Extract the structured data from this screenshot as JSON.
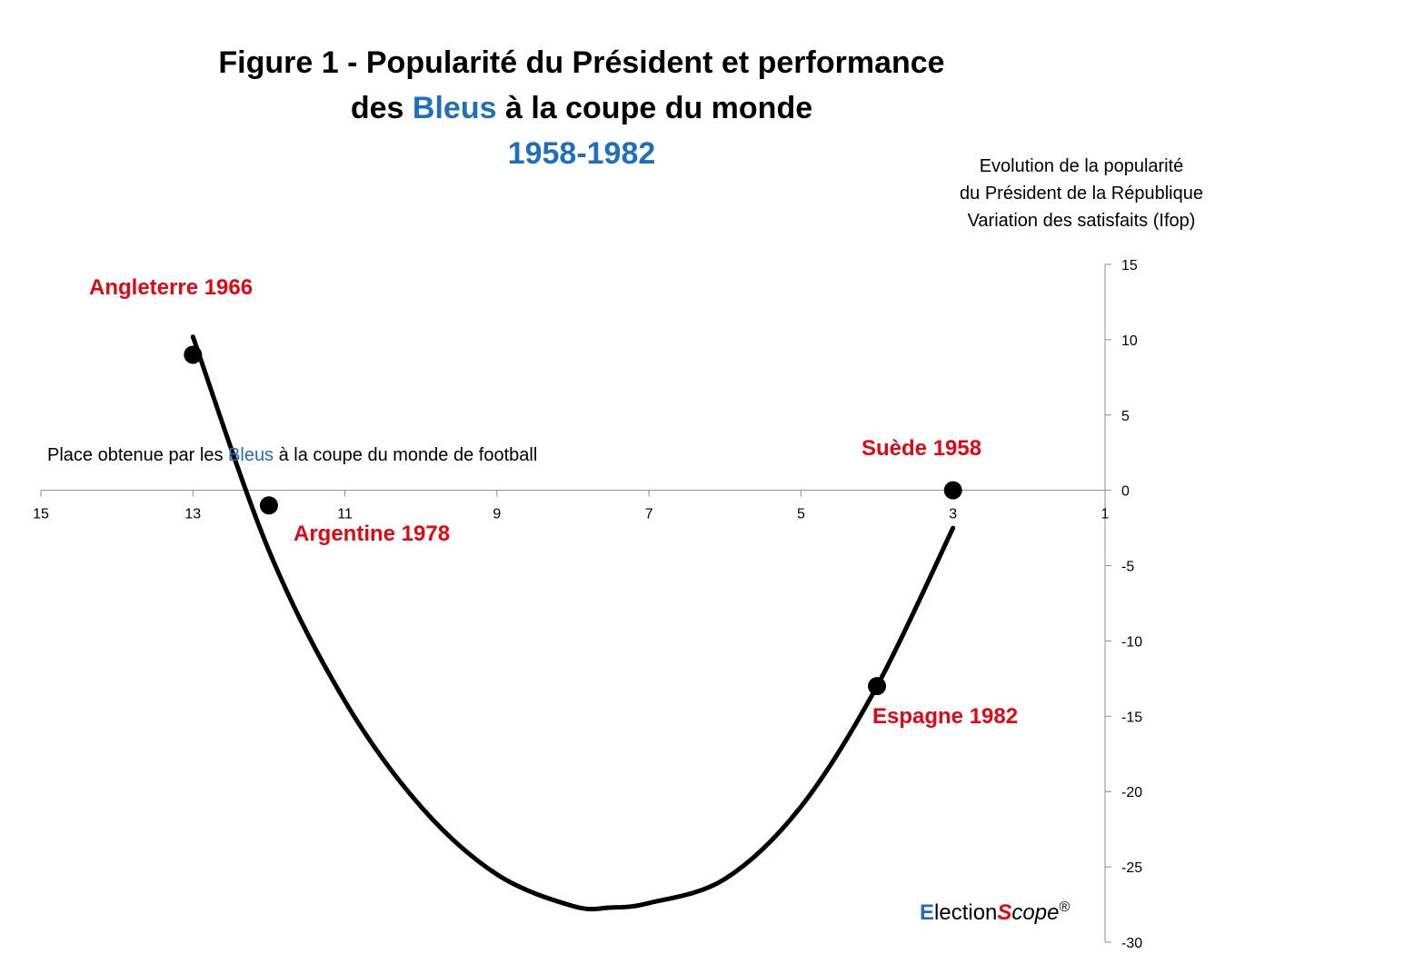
{
  "title": {
    "line1": "Figure 1 - Popularité du Président et performance",
    "line2_pre": "des ",
    "line2_blue": "Bleus",
    "line2_post": " à la coupe du monde",
    "line3": "1958-1982"
  },
  "colors": {
    "accent_blue": "#1f6fba",
    "annotation_red": "#e30613",
    "line": "#000000",
    "axis": "#8c8c8c"
  },
  "chart_data": {
    "type": "scatter",
    "y_axis_label": {
      "line1": "Evolution de la popularité",
      "line2": "du Président de la République",
      "line3": "Variation des satisfaits (Ifop)"
    },
    "x_axis_label": {
      "pre": "Place obtenue par les ",
      "blue": "Bleus",
      "post": " à la coupe du monde de football"
    },
    "xlim": [
      15,
      1
    ],
    "x_reversed": true,
    "ylim": [
      -30,
      15
    ],
    "x_ticks": [
      15,
      13,
      11,
      9,
      7,
      5,
      3,
      1
    ],
    "y_ticks": [
      15,
      10,
      5,
      0,
      -5,
      -10,
      -15,
      -20,
      -25,
      -30
    ],
    "points": [
      {
        "label": "Angleterre 1966",
        "x": 13,
        "y": 9
      },
      {
        "label": "Argentine 1978",
        "x": 12,
        "y": -1
      },
      {
        "label": "Suède 1958",
        "x": 3,
        "y": 0
      },
      {
        "label": "Espagne 1982",
        "x": 4,
        "y": -13
      }
    ],
    "trend": {
      "type": "quadratic",
      "x_range": [
        13,
        3
      ],
      "curve": [
        {
          "x": 13,
          "y": 10.2
        },
        {
          "x": 12,
          "y": -4
        },
        {
          "x": 11,
          "y": -14
        },
        {
          "x": 10,
          "y": -21
        },
        {
          "x": 9,
          "y": -25.5
        },
        {
          "x": 8,
          "y": -27.6
        },
        {
          "x": 7.5,
          "y": -27.7
        },
        {
          "x": 7,
          "y": -27.4
        },
        {
          "x": 6,
          "y": -25.8
        },
        {
          "x": 5,
          "y": -21
        },
        {
          "x": 4,
          "y": -13
        },
        {
          "x": 3,
          "y": -2.5
        }
      ]
    },
    "grid": false,
    "legend": "none"
  },
  "brand": {
    "e": "E",
    "lection": "lection",
    "s": "S",
    "cope": "cope",
    "reg": "®"
  }
}
